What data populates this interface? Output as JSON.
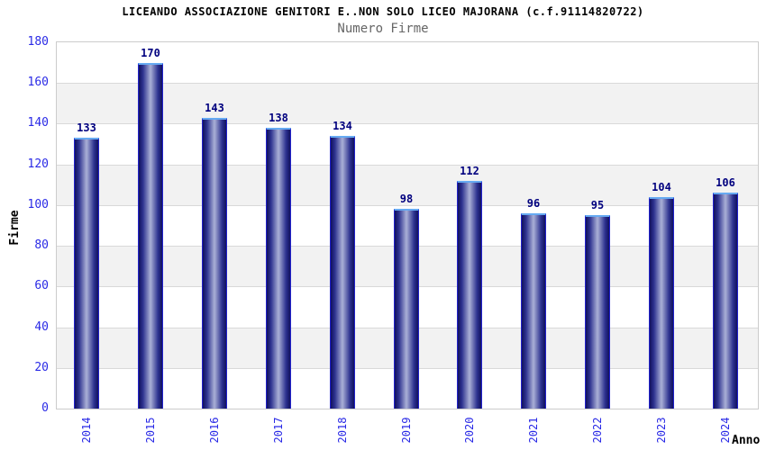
{
  "page": {
    "background": "#ffffff"
  },
  "chart_data": {
    "type": "bar",
    "title": "LICEANDO ASSOCIAZIONE GENITORI E..NON SOLO LICEO MAJORANA (c.f.91114820722)",
    "subtitle": "Numero Firme",
    "xlabel": "Anno",
    "ylabel": "Firme",
    "categories": [
      "2014",
      "2015",
      "2016",
      "2017",
      "2018",
      "2019",
      "2020",
      "2021",
      "2022",
      "2023",
      "2024"
    ],
    "values": [
      133,
      170,
      143,
      138,
      134,
      98,
      112,
      96,
      95,
      104,
      106
    ],
    "ylim": [
      0,
      180
    ],
    "ytick_step": 20,
    "yticks": [
      0,
      20,
      40,
      60,
      80,
      100,
      120,
      140,
      160,
      180
    ],
    "legend": "none",
    "grid": "horizontal gridlines every 20 units with alternating white/gray background bands",
    "bar_value_labels": "shown above each bar",
    "x_tick_rotation": "vertical (rotated 90 degrees)",
    "colors": {
      "bar_dark": "#11115e",
      "bar_mid": "#2e3390",
      "bar_highlight": "#aab0d6",
      "bar_side_border": "#2222cc",
      "bar_top_border": "#66aaf2",
      "value_label": "#00007f",
      "tick_label": "#2a2ae6",
      "title": "#000000",
      "subtitle": "#666666",
      "band_gray": "#f2f2f2",
      "band_white": "#ffffff",
      "grid_line": "#d9d9d9",
      "plot_border": "#cccccc"
    }
  }
}
